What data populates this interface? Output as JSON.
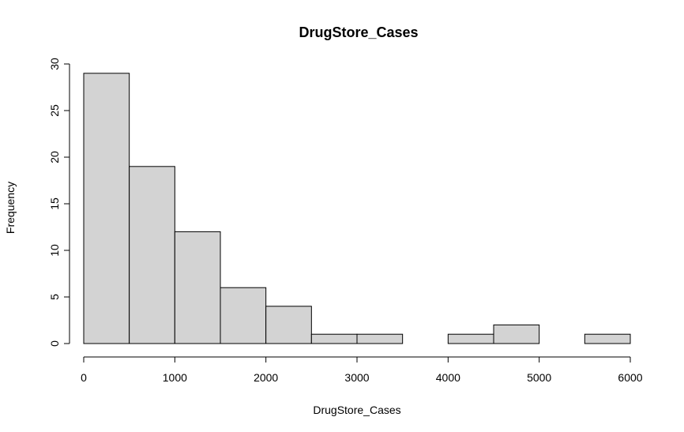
{
  "chart_data": {
    "type": "bar",
    "subtype": "histogram",
    "title": "DrugStore_Cases",
    "xlabel": "DrugStore_Cases",
    "ylabel": "Frequency",
    "bin_edges": [
      0,
      500,
      1000,
      1500,
      2000,
      2500,
      3000,
      3500,
      4000,
      4500,
      5000,
      5500,
      6000
    ],
    "values": [
      29,
      19,
      12,
      6,
      4,
      1,
      1,
      0,
      1,
      2,
      0,
      1
    ],
    "xlim": [
      0,
      6000
    ],
    "ylim": [
      0,
      30
    ],
    "x_ticks": [
      0,
      1000,
      2000,
      3000,
      4000,
      5000,
      6000
    ],
    "y_ticks": [
      0,
      5,
      10,
      15,
      20,
      25,
      30
    ],
    "bar_color": "#d3d3d3",
    "border_color": "#000000",
    "grid": false,
    "legend": "none"
  }
}
